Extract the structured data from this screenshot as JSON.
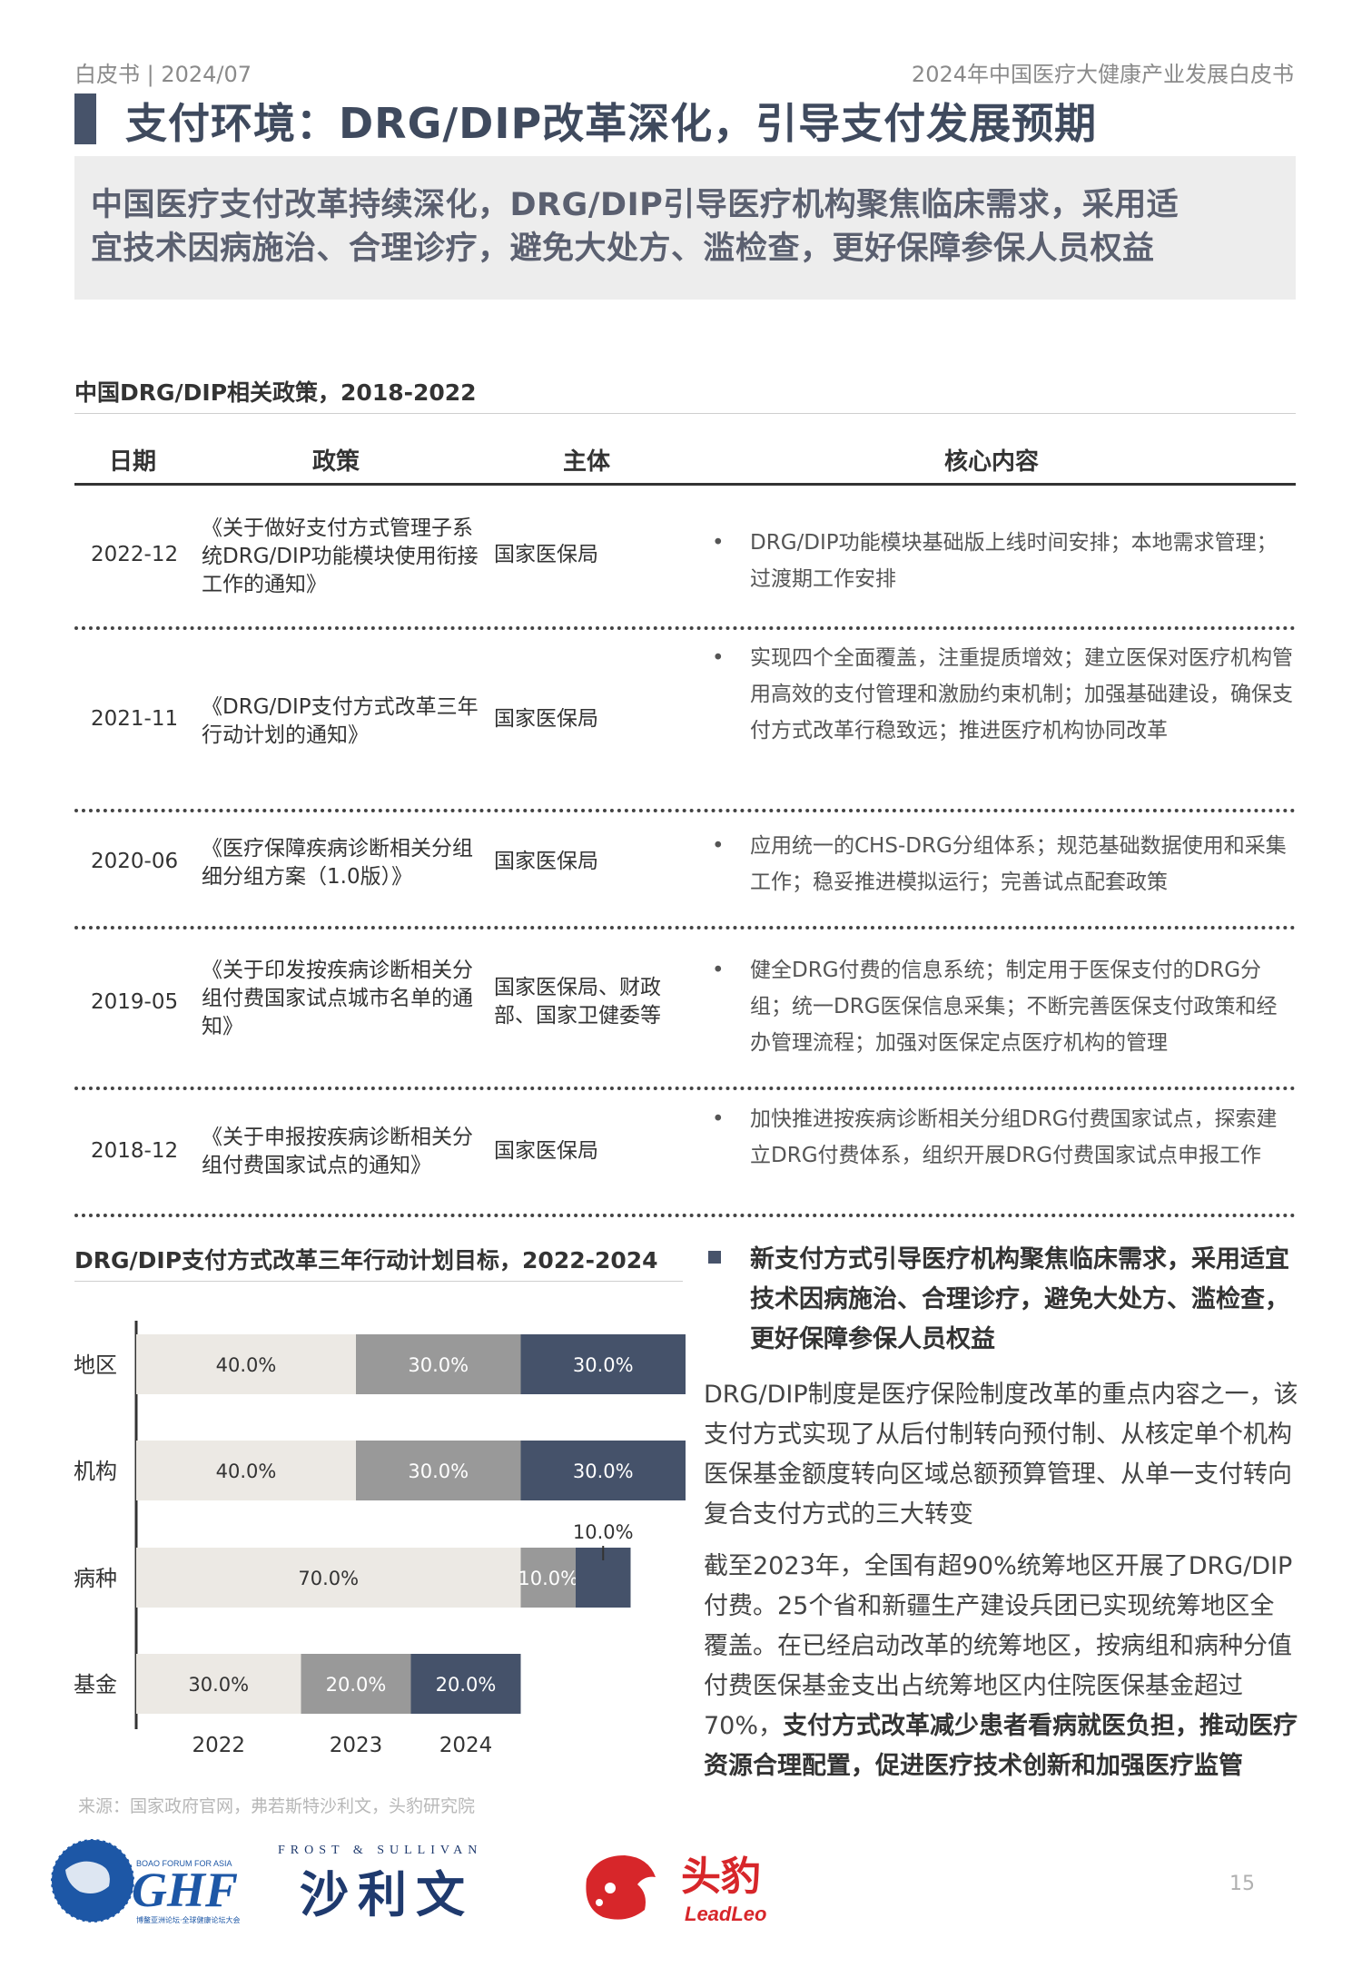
{
  "header": {
    "left": "白皮书 | 2024/07",
    "right": "2024年中国医疗大健康产业发展白皮书"
  },
  "title": "支付环境：DRG/DIP改革深化，引导支付发展预期",
  "summary": {
    "line1": "中国医疗支付改革持续深化，DRG/DIP引导医疗机构聚焦临床需求，采用适",
    "line2": "宜技术因病施治、合理诊疗，避免大处方、滥检查，更好保障参保人员权益"
  },
  "policy_table": {
    "title": "中国DRG/DIP相关政策，2018-2022",
    "headers": {
      "date": "日期",
      "policy": "政策",
      "issuer": "主体",
      "content": "核心内容"
    },
    "rows": [
      {
        "date": "2022-12",
        "policy": "《关于做好支付方式管理子系统DRG/DIP功能模块使用衔接工作的通知》",
        "issuer": "国家医保局",
        "content": "DRG/DIP功能模块基础版上线时间安排；本地需求管理；过渡期工作安排"
      },
      {
        "date": "2021-11",
        "policy": "《DRG/DIP支付方式改革三年行动计划的通知》",
        "issuer": "国家医保局",
        "content": "实现四个全面覆盖，注重提质增效；建立医保对医疗机构管用高效的支付管理和激励约束机制；加强基础建设，确保支付方式改革行稳致远；推进医疗机构协同改革"
      },
      {
        "date": "2020-06",
        "policy": "《医疗保障疾病诊断相关分组细分组方案（1.0版）》",
        "issuer": "国家医保局",
        "content": "应用统一的CHS-DRG分组体系；规范基础数据使用和采集工作；稳妥推进模拟运行；完善试点配套政策"
      },
      {
        "date": "2019-05",
        "policy": "《关于印发按疾病诊断相关分组付费国家试点城市名单的通知》",
        "issuer": "国家医保局、财政部、国家卫健委等",
        "content": "健全DRG付费的信息系统；制定用于医保支付的DRG分组；统一DRG医保信息采集；不断完善医保支付政策和经办管理流程；加强对医保定点医疗机构的管理"
      },
      {
        "date": "2018-12",
        "policy": "《关于申报按疾病诊断相关分组付费国家试点的通知》",
        "issuer": "国家医保局",
        "content": "加快推进按疾病诊断相关分组DRG付费国家试点，探索建立DRG付费体系，组织开展DRG付费国家试点申报工作"
      }
    ]
  },
  "chart_data": {
    "type": "bar",
    "orientation": "horizontal",
    "stacked": true,
    "title": "DRG/DIP支付方式改革三年行动计划目标，2022-2024",
    "categories": [
      "地区",
      "机构",
      "病种",
      "基金"
    ],
    "series": [
      {
        "name": "2022",
        "color": "#ece9e4",
        "values": [
          40.0,
          40.0,
          70.0,
          30.0
        ],
        "labels": [
          "40.0%",
          "40.0%",
          "70.0%",
          "30.0%"
        ]
      },
      {
        "name": "2023",
        "color": "#999999",
        "values": [
          30.0,
          30.0,
          10.0,
          20.0
        ],
        "labels": [
          "30.0%",
          "30.0%",
          "10.0%",
          "20.0%"
        ]
      },
      {
        "name": "2024",
        "color": "#45526a",
        "values": [
          30.0,
          30.0,
          10.0,
          20.0
        ],
        "labels": [
          "30.0%",
          "30.0%",
          "10.0%",
          "20.0%"
        ]
      }
    ],
    "xlim": [
      0,
      100
    ],
    "legend_position": "bottom",
    "grid": false
  },
  "side_text": {
    "heading": "新支付方式引导医疗机构聚焦临床需求，采用适宜技术因病施治、合理诊疗，避免大处方、滥检查，更好保障参保人员权益",
    "para1": "DRG/DIP制度是医疗保险制度改革的重点内容之一，该支付方式实现了从后付制转向预付制、从核定单个机构医保基金额度转向区域总额预算管理、从单一支付转向复合支付方式的三大转变",
    "para2_plain": "截至2023年，全国有超90%统筹地区开展了DRG/DIP付费。25个省和新疆生产建设兵团已实现统筹地区全覆盖。在已经启动改革的统筹地区，按病组和病种分值付费医保基金支出占统筹地区内住院医保基金超过70%，",
    "para2_bold": "支付方式改革减少患者看病就医负担，推动医疗资源合理配置，促进医疗技术创新和加强医疗监管"
  },
  "source": "来源：国家政府官网，弗若斯特沙利文，头豹研究院",
  "logos": {
    "ghf_top": "BOAO FORUM FOR ASIA",
    "ghf": "GHF",
    "ghf_sub": "博鳌亚洲论坛·全球健康论坛大会",
    "fs_en": "FROST & SULLIVAN",
    "fs_cn": "沙利文",
    "leadleo_cn": "头豹",
    "leadleo_en": "LeadLeo"
  },
  "page_number": "15",
  "colors": {
    "accent": "#47536a",
    "summary_bg": "#ededed"
  }
}
